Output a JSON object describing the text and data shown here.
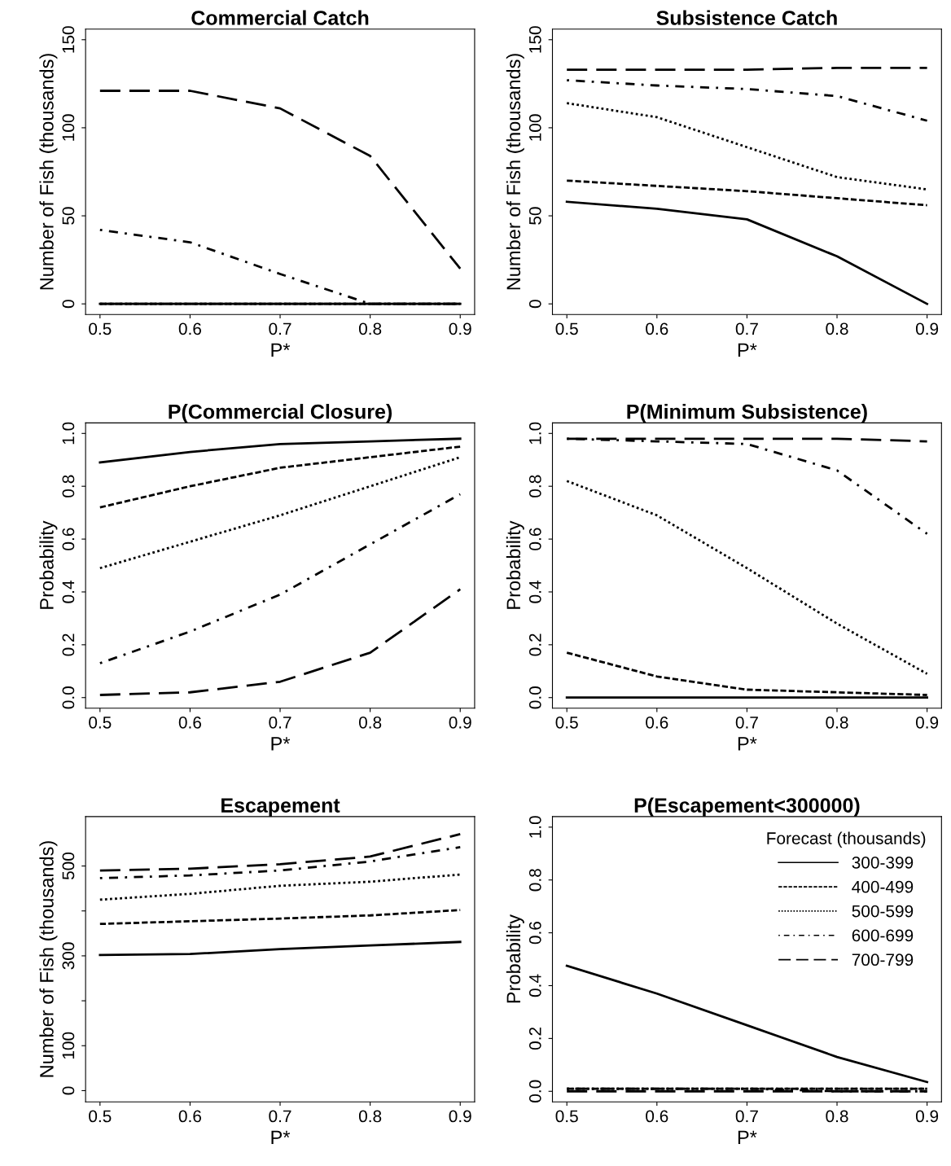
{
  "chart_data": [
    {
      "type": "line",
      "title": "Commercial Catch",
      "xlabel": "P*",
      "ylabel": "Number of Fish (thousands)",
      "x": [
        0.5,
        0.6,
        0.7,
        0.8,
        0.9
      ],
      "xlim": [
        0.484,
        0.916
      ],
      "xticks": [
        0.5,
        0.6,
        0.7,
        0.8,
        0.9
      ],
      "ylim": [
        -6,
        156
      ],
      "yticks": [
        0,
        50,
        100,
        150
      ],
      "grid": false,
      "legend": false,
      "series": [
        {
          "color": "#000000",
          "line_style": "solid",
          "values": [
            0,
            0,
            0,
            0,
            0
          ]
        },
        {
          "color": "#000000",
          "line_style": "dashed",
          "values": [
            0,
            0,
            0,
            0,
            0
          ]
        },
        {
          "color": "#000000",
          "line_style": "dotted",
          "values": [
            0,
            0,
            0,
            0,
            0
          ]
        },
        {
          "color": "#000000",
          "line_style": "dashdot",
          "values": [
            42,
            35,
            17,
            0,
            0
          ]
        },
        {
          "color": "#000000",
          "line_style": "longdash",
          "values": [
            121,
            121,
            111,
            84,
            20
          ]
        }
      ]
    },
    {
      "type": "line",
      "title": "Subsistence Catch",
      "xlabel": "P*",
      "ylabel": "Number of Fish (thousands)",
      "x": [
        0.5,
        0.6,
        0.7,
        0.8,
        0.9
      ],
      "xlim": [
        0.484,
        0.916
      ],
      "xticks": [
        0.5,
        0.6,
        0.7,
        0.8,
        0.9
      ],
      "ylim": [
        -6,
        156
      ],
      "yticks": [
        0,
        50,
        100,
        150
      ],
      "grid": false,
      "legend": false,
      "series": [
        {
          "color": "#000000",
          "line_style": "solid",
          "values": [
            58,
            54,
            48,
            27,
            0
          ]
        },
        {
          "color": "#000000",
          "line_style": "dashed",
          "values": [
            70,
            67,
            64,
            60,
            56
          ]
        },
        {
          "color": "#000000",
          "line_style": "dotted",
          "values": [
            114,
            106,
            89,
            72,
            65
          ]
        },
        {
          "color": "#000000",
          "line_style": "dashdot",
          "values": [
            127,
            124,
            122,
            118,
            104
          ]
        },
        {
          "color": "#000000",
          "line_style": "longdash",
          "values": [
            133,
            133,
            133,
            134,
            134
          ]
        }
      ]
    },
    {
      "type": "line",
      "title": "P(Commercial Closure)",
      "xlabel": "P*",
      "ylabel": "Probability",
      "x": [
        0.5,
        0.6,
        0.7,
        0.8,
        0.9
      ],
      "xlim": [
        0.484,
        0.916
      ],
      "xticks": [
        0.5,
        0.6,
        0.7,
        0.8,
        0.9
      ],
      "ylim": [
        -0.04,
        1.04
      ],
      "yticks": [
        {
          "value": 0,
          "label": "0.0"
        },
        0.2,
        0.4,
        0.6,
        0.8,
        {
          "value": 1,
          "label": "1.0"
        }
      ],
      "grid": false,
      "legend": false,
      "series": [
        {
          "color": "#000000",
          "line_style": "solid",
          "values": [
            0.89,
            0.93,
            0.96,
            0.97,
            0.98
          ]
        },
        {
          "color": "#000000",
          "line_style": "dashed",
          "values": [
            0.72,
            0.8,
            0.87,
            0.91,
            0.95
          ]
        },
        {
          "color": "#000000",
          "line_style": "dotted",
          "values": [
            0.49,
            0.59,
            0.69,
            0.8,
            0.91
          ]
        },
        {
          "color": "#000000",
          "line_style": "dashdot",
          "values": [
            0.13,
            0.25,
            0.39,
            0.58,
            0.77
          ]
        },
        {
          "color": "#000000",
          "line_style": "longdash",
          "values": [
            0.01,
            0.02,
            0.06,
            0.17,
            0.41
          ]
        }
      ]
    },
    {
      "type": "line",
      "title": "P(Minimum Subsistence)",
      "xlabel": "P*",
      "ylabel": "Probability",
      "x": [
        0.5,
        0.6,
        0.7,
        0.8,
        0.9
      ],
      "xlim": [
        0.484,
        0.916
      ],
      "xticks": [
        0.5,
        0.6,
        0.7,
        0.8,
        0.9
      ],
      "ylim": [
        -0.04,
        1.04
      ],
      "yticks": [
        {
          "value": 0,
          "label": "0.0"
        },
        0.2,
        0.4,
        0.6,
        0.8,
        {
          "value": 1,
          "label": "1.0"
        }
      ],
      "grid": false,
      "legend": false,
      "series": [
        {
          "color": "#000000",
          "line_style": "solid",
          "values": [
            0,
            0,
            0,
            0,
            0
          ]
        },
        {
          "color": "#000000",
          "line_style": "dashed",
          "values": [
            0.17,
            0.08,
            0.03,
            0.02,
            0.01
          ]
        },
        {
          "color": "#000000",
          "line_style": "dotted",
          "values": [
            0.82,
            0.69,
            0.49,
            0.28,
            0.09
          ]
        },
        {
          "color": "#000000",
          "line_style": "dashdot",
          "values": [
            0.98,
            0.97,
            0.96,
            0.86,
            0.62
          ]
        },
        {
          "color": "#000000",
          "line_style": "longdash",
          "values": [
            0.98,
            0.98,
            0.98,
            0.98,
            0.97
          ]
        }
      ]
    },
    {
      "type": "line",
      "title": "Escapement",
      "xlabel": "P*",
      "ylabel": "Number of Fish (thousands)",
      "x": [
        0.5,
        0.6,
        0.7,
        0.8,
        0.9
      ],
      "xlim": [
        0.484,
        0.916
      ],
      "xticks": [
        0.5,
        0.6,
        0.7,
        0.8,
        0.9
      ],
      "ylim": [
        -25,
        610
      ],
      "yticks": [
        0,
        100,
        {
          "value": 200,
          "label": null
        },
        300,
        {
          "value": 400,
          "label": null
        },
        500
      ],
      "grid": false,
      "legend": false,
      "series": [
        {
          "color": "#000000",
          "line_style": "solid",
          "values": [
            302,
            304,
            315,
            323,
            331
          ]
        },
        {
          "color": "#000000",
          "line_style": "dashed",
          "values": [
            371,
            377,
            383,
            390,
            402
          ]
        },
        {
          "color": "#000000",
          "line_style": "dotted",
          "values": [
            425,
            438,
            456,
            465,
            481
          ]
        },
        {
          "color": "#000000",
          "line_style": "dashdot",
          "values": [
            473,
            479,
            490,
            510,
            542
          ]
        },
        {
          "color": "#000000",
          "line_style": "longdash",
          "values": [
            490,
            494,
            504,
            521,
            571
          ]
        }
      ]
    },
    {
      "type": "line",
      "title": "P(Escapement<300000)",
      "xlabel": "P*",
      "ylabel": "Probability",
      "legend_title": "Forecast (thousands)",
      "x": [
        0.5,
        0.6,
        0.7,
        0.8,
        0.9
      ],
      "xlim": [
        0.484,
        0.916
      ],
      "xticks": [
        0.5,
        0.6,
        0.7,
        0.8,
        0.9
      ],
      "ylim": [
        -0.04,
        1.04
      ],
      "yticks": [
        {
          "value": 0,
          "label": "0.0"
        },
        0.2,
        0.4,
        0.6,
        0.8,
        {
          "value": 1,
          "label": "1.0"
        }
      ],
      "grid": false,
      "legend": "top right",
      "series": [
        {
          "name": "300-399",
          "color": "#000000",
          "line_style": "solid",
          "values": [
            0.475,
            0.37,
            0.25,
            0.13,
            0.035
          ]
        },
        {
          "name": "400-499",
          "color": "#000000",
          "line_style": "dashed",
          "values": [
            0.01,
            0.01,
            0.01,
            0.01,
            0.01
          ]
        },
        {
          "name": "500-599",
          "color": "#000000",
          "line_style": "dotted",
          "values": [
            0.01,
            0.01,
            0.01,
            0.01,
            0.01
          ]
        },
        {
          "name": "600-699",
          "color": "#000000",
          "line_style": "dashdot",
          "values": [
            0.01,
            0.01,
            0.01,
            0.0,
            0.0
          ]
        },
        {
          "name": "700-799",
          "color": "#000000",
          "line_style": "longdash",
          "values": [
            0.0,
            0.0,
            0.0,
            0.0,
            0.0
          ]
        }
      ]
    }
  ]
}
